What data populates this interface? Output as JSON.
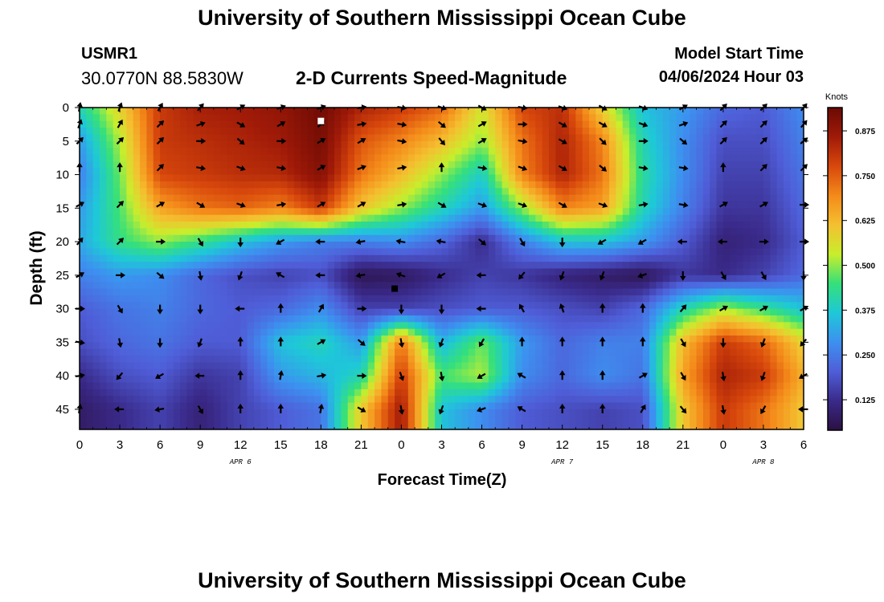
{
  "page_title": "University of Southern Mississippi Ocean Cube",
  "footer_title": "University of Southern Mississippi Ocean Cube",
  "station": {
    "id": "USMR1",
    "coords": "30.0770N  88.5830W"
  },
  "model_start": {
    "label": "Model Start Time",
    "value": "04/06/2024 Hour 03"
  },
  "chart_data": {
    "type": "heatmap",
    "title": "2-D Currents Speed-Magnitude",
    "xlabel": "Forecast Time(Z)",
    "ylabel": "Depth (ft)",
    "x_ticks": [
      "0",
      "3",
      "6",
      "9",
      "12",
      "15",
      "18",
      "21",
      "0",
      "3",
      "6",
      "9",
      "12",
      "15",
      "18",
      "21",
      "0",
      "3",
      "6"
    ],
    "y_ticks": [
      "0",
      "5",
      "10",
      "15",
      "20",
      "25",
      "30",
      "35",
      "40",
      "45"
    ],
    "y_tick_values": [
      0,
      5,
      10,
      15,
      20,
      25,
      30,
      35,
      40,
      45
    ],
    "ylim": [
      0,
      48
    ],
    "x_hours_range": [
      0,
      54
    ],
    "date_labels": [
      {
        "text": "APR 6",
        "hour": 12
      },
      {
        "text": "APR 7",
        "hour": 36
      },
      {
        "text": "APR 8",
        "hour": 51
      }
    ],
    "colorbar": {
      "label": "Knots",
      "ticks": [
        "0.125",
        "0.250",
        "0.375",
        "0.500",
        "0.625",
        "0.750",
        "0.875"
      ],
      "tick_values": [
        0.125,
        0.25,
        0.375,
        0.5,
        0.625,
        0.75,
        0.875
      ],
      "range": [
        0.04,
        0.94
      ],
      "colors": [
        "#2b1042",
        "#3a2a8a",
        "#4f5ed8",
        "#3d90f0",
        "#1ec8d8",
        "#35e07a",
        "#c8ee2c",
        "#f4c030",
        "#f48a1a",
        "#d8480c",
        "#a01a08",
        "#6a0a04"
      ]
    },
    "speed_rows_depths": [
      0,
      5,
      10,
      15,
      20,
      25,
      30,
      35,
      40,
      45
    ],
    "speed_cols_hours": [
      0,
      3,
      6,
      9,
      12,
      15,
      18,
      21,
      24,
      27,
      30,
      33,
      36,
      39,
      42,
      45,
      48,
      51,
      54
    ],
    "speed_knots": [
      [
        0.4,
        0.58,
        0.8,
        0.85,
        0.86,
        0.88,
        0.93,
        0.84,
        0.8,
        0.74,
        0.55,
        0.78,
        0.82,
        0.58,
        0.36,
        0.3,
        0.22,
        0.2,
        0.28
      ],
      [
        0.3,
        0.52,
        0.8,
        0.82,
        0.84,
        0.86,
        0.92,
        0.76,
        0.7,
        0.62,
        0.5,
        0.72,
        0.84,
        0.7,
        0.4,
        0.28,
        0.18,
        0.18,
        0.26
      ],
      [
        0.26,
        0.48,
        0.78,
        0.8,
        0.82,
        0.83,
        0.9,
        0.72,
        0.62,
        0.5,
        0.38,
        0.7,
        0.84,
        0.72,
        0.42,
        0.28,
        0.16,
        0.16,
        0.24
      ],
      [
        0.3,
        0.46,
        0.66,
        0.72,
        0.74,
        0.7,
        0.8,
        0.6,
        0.5,
        0.4,
        0.3,
        0.5,
        0.7,
        0.66,
        0.4,
        0.26,
        0.14,
        0.14,
        0.22
      ],
      [
        0.32,
        0.44,
        0.5,
        0.44,
        0.36,
        0.3,
        0.26,
        0.26,
        0.28,
        0.22,
        0.12,
        0.26,
        0.36,
        0.36,
        0.3,
        0.2,
        0.1,
        0.12,
        0.2
      ],
      [
        0.26,
        0.3,
        0.28,
        0.22,
        0.18,
        0.16,
        0.18,
        0.06,
        0.07,
        0.12,
        0.16,
        0.14,
        0.1,
        0.08,
        0.06,
        0.14,
        0.12,
        0.16,
        0.22
      ],
      [
        0.2,
        0.24,
        0.26,
        0.22,
        0.2,
        0.22,
        0.28,
        0.16,
        0.16,
        0.18,
        0.2,
        0.2,
        0.18,
        0.16,
        0.22,
        0.4,
        0.52,
        0.44,
        0.36
      ],
      [
        0.18,
        0.22,
        0.24,
        0.2,
        0.2,
        0.36,
        0.4,
        0.3,
        0.72,
        0.34,
        0.48,
        0.3,
        0.22,
        0.26,
        0.26,
        0.62,
        0.8,
        0.74,
        0.58
      ],
      [
        0.12,
        0.18,
        0.2,
        0.14,
        0.16,
        0.3,
        0.34,
        0.4,
        0.8,
        0.46,
        0.52,
        0.28,
        0.22,
        0.28,
        0.24,
        0.66,
        0.84,
        0.8,
        0.64
      ],
      [
        0.08,
        0.12,
        0.16,
        0.1,
        0.16,
        0.2,
        0.24,
        0.6,
        0.86,
        0.36,
        0.28,
        0.2,
        0.18,
        0.16,
        0.18,
        0.6,
        0.8,
        0.72,
        0.6
      ]
    ],
    "arrow_rows_depths": [
      0,
      2.5,
      5,
      9,
      14.5,
      20,
      25,
      30,
      35,
      40,
      45
    ],
    "arrow_cols_hours": [
      0,
      3,
      6,
      9,
      12,
      15,
      18,
      21,
      24,
      27,
      30,
      33,
      36,
      39,
      42,
      45,
      48,
      51,
      54
    ],
    "arrow_dir_deg": [
      [
        10,
        20,
        30,
        40,
        60,
        70,
        70,
        80,
        100,
        110,
        120,
        100,
        110,
        120,
        110,
        60,
        45,
        45,
        40
      ],
      [
        20,
        30,
        45,
        70,
        120,
        60,
        50,
        80,
        100,
        130,
        60,
        90,
        120,
        120,
        110,
        70,
        45,
        45,
        40
      ],
      [
        45,
        45,
        45,
        90,
        130,
        90,
        60,
        60,
        100,
        140,
        60,
        100,
        120,
        135,
        90,
        130,
        45,
        45,
        50
      ],
      [
        0,
        0,
        45,
        100,
        110,
        100,
        60,
        70,
        80,
        0,
        100,
        110,
        120,
        130,
        100,
        100,
        0,
        45,
        45
      ],
      [
        60,
        45,
        60,
        120,
        110,
        80,
        60,
        60,
        80,
        120,
        110,
        110,
        120,
        110,
        80,
        100,
        60,
        60,
        90
      ],
      [
        40,
        45,
        90,
        150,
        180,
        240,
        270,
        260,
        280,
        280,
        130,
        150,
        180,
        240,
        240,
        270,
        270,
        90,
        90
      ],
      [
        60,
        90,
        130,
        170,
        200,
        300,
        270,
        260,
        290,
        240,
        270,
        220,
        200,
        200,
        250,
        180,
        150,
        150,
        180
      ],
      [
        90,
        150,
        180,
        180,
        270,
        0,
        30,
        90,
        180,
        180,
        270,
        330,
        340,
        0,
        0,
        40,
        60,
        60,
        60
      ],
      [
        100,
        170,
        180,
        200,
        0,
        0,
        60,
        130,
        170,
        200,
        210,
        0,
        0,
        0,
        0,
        150,
        180,
        200,
        220
      ],
      [
        80,
        220,
        240,
        270,
        0,
        10,
        80,
        90,
        160,
        170,
        240,
        300,
        0,
        0,
        60,
        150,
        170,
        200,
        240
      ],
      [
        10,
        270,
        260,
        150,
        0,
        0,
        10,
        120,
        170,
        200,
        250,
        300,
        0,
        0,
        30,
        140,
        170,
        210,
        270
      ]
    ],
    "markers": [
      {
        "kind": "white-square",
        "hour": 18,
        "depth": 2
      },
      {
        "kind": "black-square",
        "hour": 23.5,
        "depth": 27
      }
    ]
  }
}
